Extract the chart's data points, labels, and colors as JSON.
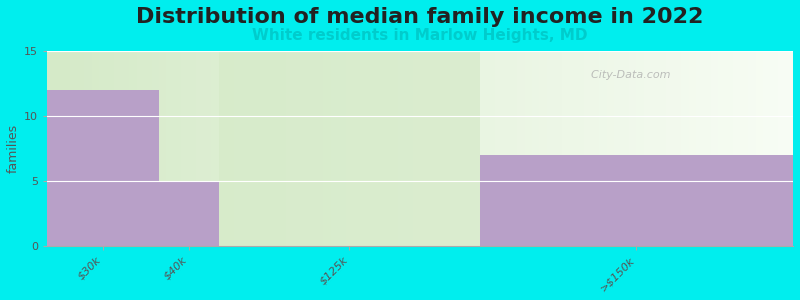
{
  "title": "Distribution of median family income in 2022",
  "subtitle": "White residents in Marlow Heights, MD",
  "categories": [
    "$30k",
    "$40k",
    "$125k",
    ">$150k"
  ],
  "values": [
    12,
    5,
    0,
    7
  ],
  "bar_color": "#b8a0c8",
  "green_region_color": "#d5eac8",
  "background_color": "#00eeee",
  "ylabel": "families",
  "ylim": [
    0,
    15
  ],
  "yticks": [
    0,
    5,
    10,
    15
  ],
  "title_fontsize": 16,
  "subtitle_fontsize": 11,
  "subtitle_color": "#00cccc",
  "title_color": "#222222",
  "watermark": "  City-Data.com",
  "tick_color": "#555555",
  "tick_fontsize": 8,
  "ylabel_fontsize": 9
}
